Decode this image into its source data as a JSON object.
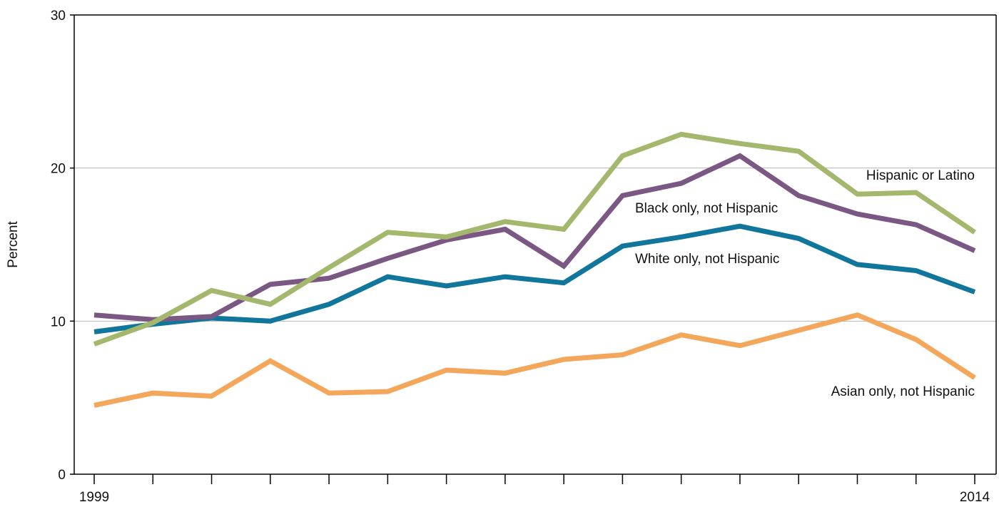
{
  "chart_data": {
    "type": "line",
    "title": "",
    "xlabel": "",
    "ylabel": "Percent",
    "x": [
      1999,
      2000,
      2001,
      2002,
      2003,
      2004,
      2005,
      2006,
      2007,
      2008,
      2009,
      2010,
      2011,
      2012,
      2013,
      2014
    ],
    "x_tick_labels": [
      {
        "value": 1999,
        "label": "1999"
      },
      {
        "value": 2014,
        "label": "2014"
      }
    ],
    "xlim": [
      1999,
      2014
    ],
    "ylim": [
      0,
      30
    ],
    "y_ticks": [
      0,
      10,
      20,
      30
    ],
    "grid": {
      "horizontal": true,
      "vertical": false
    },
    "legend": "inline labels",
    "series": [
      {
        "name": "Hispanic or Latino",
        "color": "#a3b86c",
        "values": [
          8.5,
          9.9,
          12.0,
          11.1,
          13.5,
          15.8,
          15.5,
          16.5,
          16.0,
          20.8,
          22.2,
          21.6,
          21.1,
          18.3,
          18.4,
          15.8
        ]
      },
      {
        "name": "Black only, not Hispanic",
        "color": "#7b5883",
        "values": [
          10.4,
          10.1,
          10.3,
          12.4,
          12.8,
          14.1,
          15.3,
          16.0,
          13.6,
          18.2,
          19.0,
          20.8,
          18.2,
          17.0,
          16.3,
          14.6
        ]
      },
      {
        "name": "White only, not Hispanic",
        "color": "#11769c",
        "values": [
          9.3,
          9.8,
          10.2,
          10.0,
          11.1,
          12.9,
          12.3,
          12.9,
          12.5,
          14.9,
          15.5,
          16.2,
          15.4,
          13.7,
          13.3,
          11.9
        ]
      },
      {
        "name": "Asian only, not Hispanic",
        "color": "#f4a65a",
        "values": [
          4.5,
          5.3,
          5.1,
          7.4,
          5.3,
          5.4,
          6.8,
          6.6,
          7.5,
          7.8,
          9.1,
          8.4,
          9.4,
          10.4,
          8.8,
          6.3
        ]
      }
    ]
  }
}
